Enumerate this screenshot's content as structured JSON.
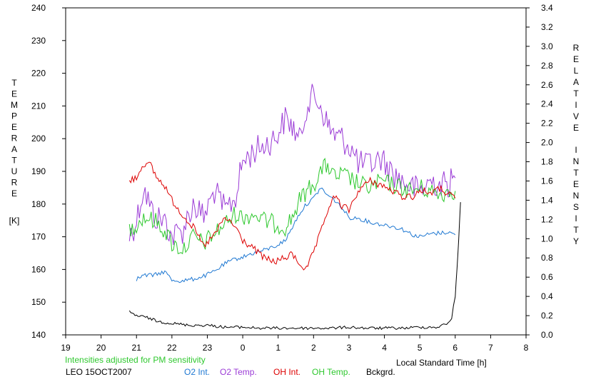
{
  "chart_data": {
    "type": "line",
    "xlabel": "Local Standard Time [h]",
    "ylabel": [
      "T",
      "E",
      "M",
      "P",
      "E",
      "R",
      "A",
      "T",
      "U",
      "R",
      "E"
    ],
    "ylabel_unit": "[K]",
    "y2label_word1": [
      "R",
      "E",
      "L",
      "A",
      "T",
      "I",
      "V",
      "E"
    ],
    "y2label_word2": [
      "I",
      "N",
      "T",
      "E",
      "N",
      "S",
      "I",
      "T",
      "Y"
    ],
    "note": "Intensities adjusted for PM sensitivity",
    "station_date": "LEO 15OCT2007",
    "xlim": [
      19,
      8
    ],
    "ylim": [
      140,
      240
    ],
    "y2lim": [
      0,
      3.4
    ],
    "x_ticks": [
      "19",
      "20",
      "21",
      "22",
      "23",
      "0",
      "1",
      "2",
      "3",
      "4",
      "5",
      "6",
      "7",
      "8"
    ],
    "y_ticks": [
      "140",
      "150",
      "160",
      "170",
      "180",
      "190",
      "200",
      "210",
      "220",
      "230",
      "240"
    ],
    "y2_ticks": [
      "0.0",
      "0.2",
      "0.4",
      "0.6",
      "0.8",
      "1.0",
      "1.2",
      "1.4",
      "1.6",
      "1.8",
      "2.0",
      "2.2",
      "2.4",
      "2.6",
      "2.8",
      "3.0",
      "3.2",
      "3.4"
    ],
    "legend_position": "bottom",
    "colors": {
      "o2_int": "#1f78d2",
      "o2_temp": "#9b3bd6",
      "oh_int": "#dd0000",
      "oh_temp": "#2ec82e",
      "bckgrd": "#000000",
      "note": "#2ec82e"
    },
    "series": [
      {
        "name": "O2 Int.",
        "axis": "right",
        "x": [
          21.0,
          21.2,
          21.5,
          21.8,
          22.0,
          22.3,
          22.6,
          22.9,
          23.2,
          23.5,
          23.8,
          24.0,
          24.3,
          24.6,
          24.9,
          25.2,
          25.4,
          25.6,
          25.8,
          26.0,
          26.2,
          26.4,
          26.6,
          26.8,
          27.0,
          27.3,
          27.6,
          27.9,
          28.2,
          28.5,
          28.8,
          29.0,
          29.3,
          29.6,
          29.8,
          30.0
        ],
        "values": [
          0.58,
          0.62,
          0.62,
          0.66,
          0.57,
          0.56,
          0.58,
          0.61,
          0.66,
          0.74,
          0.79,
          0.81,
          0.85,
          0.88,
          0.92,
          0.98,
          1.12,
          1.26,
          1.36,
          1.42,
          1.53,
          1.45,
          1.4,
          1.32,
          1.22,
          1.21,
          1.17,
          1.15,
          1.13,
          1.1,
          1.04,
          1.02,
          1.05,
          1.06,
          1.07,
          1.04
        ]
      },
      {
        "name": "O2 Temp.",
        "axis": "left",
        "x": [
          20.8,
          21.0,
          21.2,
          21.5,
          21.8,
          22.0,
          22.3,
          22.6,
          22.9,
          23.2,
          23.5,
          23.8,
          24.0,
          24.3,
          24.6,
          24.9,
          25.2,
          25.4,
          25.6,
          25.8,
          26.0,
          26.2,
          26.4,
          26.6,
          26.8,
          27.0,
          27.3,
          27.6,
          27.9,
          28.2,
          28.5,
          28.8,
          29.0,
          29.3,
          29.6,
          29.8,
          30.0
        ],
        "values": [
          170,
          175,
          185,
          176,
          175,
          170,
          172,
          180,
          176,
          184,
          178,
          182,
          193,
          196,
          198,
          200,
          206,
          204,
          199,
          210,
          213,
          210,
          204,
          201,
          200,
          198,
          192,
          192,
          194,
          190,
          187,
          185,
          184,
          187,
          186,
          186,
          188
        ]
      },
      {
        "name": "OH Int.",
        "axis": "right",
        "x": [
          20.8,
          21.0,
          21.2,
          21.4,
          21.6,
          21.8,
          22.0,
          22.3,
          22.6,
          22.9,
          23.2,
          23.5,
          23.8,
          24.0,
          24.3,
          24.6,
          24.9,
          25.2,
          25.4,
          25.6,
          25.8,
          26.0,
          26.2,
          26.4,
          26.6,
          26.8,
          27.0,
          27.3,
          27.6,
          27.9,
          28.2,
          28.5,
          28.8,
          29.0,
          29.3,
          29.6,
          29.8,
          30.0
        ],
        "values": [
          1.6,
          1.64,
          1.78,
          1.76,
          1.62,
          1.55,
          1.4,
          1.25,
          1.12,
          0.92,
          1.04,
          1.22,
          1.12,
          0.98,
          0.9,
          0.8,
          0.76,
          0.8,
          0.84,
          0.74,
          0.68,
          0.86,
          1.06,
          1.3,
          1.44,
          1.34,
          1.3,
          1.52,
          1.6,
          1.56,
          1.5,
          1.44,
          1.44,
          1.5,
          1.48,
          1.52,
          1.46,
          1.42
        ]
      },
      {
        "name": "OH Temp.",
        "axis": "left",
        "x": [
          20.8,
          21.0,
          21.2,
          21.5,
          21.8,
          22.0,
          22.3,
          22.6,
          22.9,
          23.2,
          23.5,
          23.8,
          24.0,
          24.3,
          24.6,
          24.9,
          25.2,
          25.4,
          25.6,
          25.8,
          26.0,
          26.2,
          26.4,
          26.6,
          26.8,
          27.0,
          27.3,
          27.6,
          27.9,
          28.2,
          28.5,
          28.8,
          29.0,
          29.3,
          29.6,
          29.8,
          30.0
        ],
        "values": [
          172,
          174,
          176,
          175,
          172,
          168,
          166,
          170,
          168,
          171,
          174,
          177,
          176,
          177,
          175,
          174,
          173,
          176,
          181,
          184,
          186,
          190,
          192,
          188,
          189,
          188,
          186,
          185,
          187,
          186,
          185,
          184,
          185,
          184,
          183,
          184,
          184
        ]
      },
      {
        "name": "Bckgrd.",
        "axis": "right",
        "x": [
          20.8,
          21.0,
          21.3,
          21.6,
          22.0,
          22.5,
          23.0,
          23.5,
          24.0,
          24.5,
          25.0,
          25.5,
          26.0,
          26.5,
          27.0,
          27.5,
          28.0,
          28.5,
          29.0,
          29.5,
          29.8,
          29.9,
          30.0,
          30.05,
          30.1,
          30.15
        ],
        "values": [
          0.24,
          0.2,
          0.18,
          0.14,
          0.12,
          0.1,
          0.1,
          0.08,
          0.08,
          0.07,
          0.07,
          0.07,
          0.07,
          0.07,
          0.08,
          0.07,
          0.07,
          0.07,
          0.08,
          0.08,
          0.12,
          0.18,
          0.4,
          0.7,
          1.0,
          1.38
        ]
      }
    ]
  }
}
